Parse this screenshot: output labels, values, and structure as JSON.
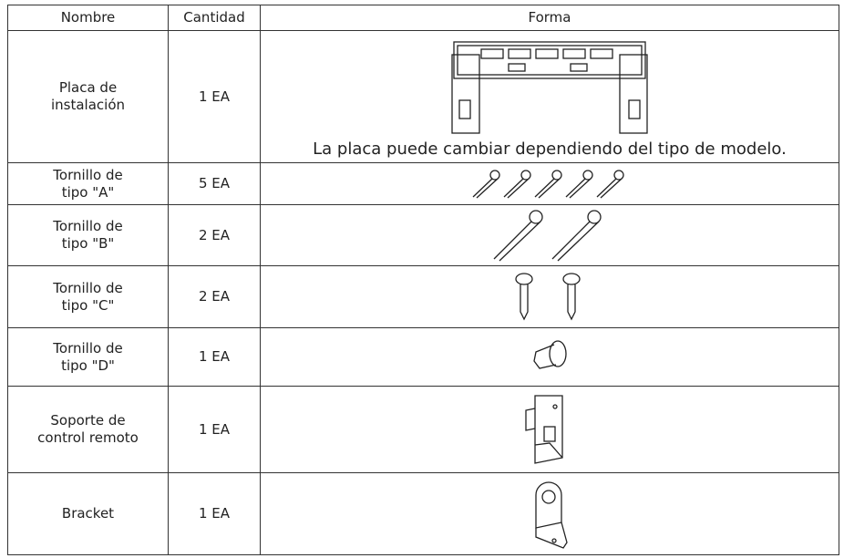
{
  "table": {
    "header": [
      "Nombre",
      "Cantidad",
      "Forma"
    ],
    "rows": [
      {
        "name": [
          "Placa de",
          "instalación"
        ],
        "quantity": "1 EA",
        "note": "La placa puede cambiar dependiendo del tipo de modelo."
      },
      {
        "name": [
          "Tornillo de",
          "tipo \"A\""
        ],
        "quantity": "5 EA"
      },
      {
        "name": [
          "Tornillo de",
          "tipo \"B\""
        ],
        "quantity": "2 EA"
      },
      {
        "name": [
          "Tornillo de",
          "tipo \"C\""
        ],
        "quantity": "2 EA"
      },
      {
        "name": [
          "Tornillo de",
          "tipo \"D\""
        ],
        "quantity": "1 EA"
      },
      {
        "name": [
          "Soporte de",
          "control remoto"
        ],
        "quantity": "1 EA"
      },
      {
        "name": [
          "Bracket"
        ],
        "quantity": "1 EA"
      }
    ]
  }
}
